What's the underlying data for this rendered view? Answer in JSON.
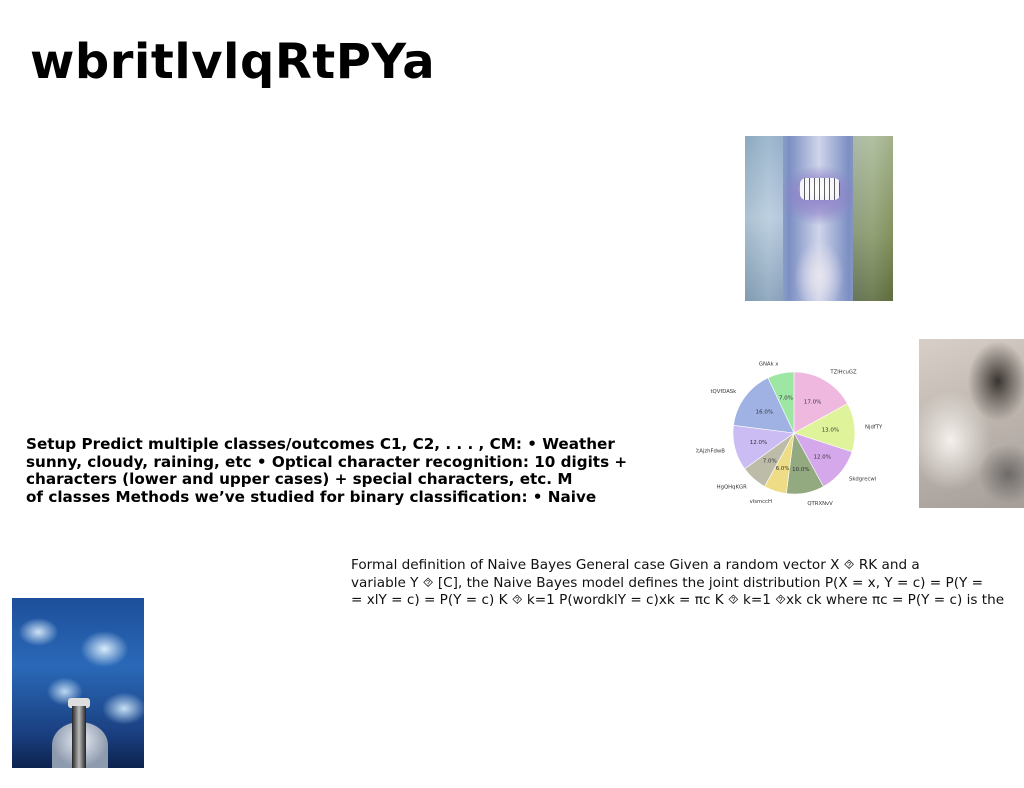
{
  "slide": {
    "title": "wbritlvlqRtPYa",
    "bold_lines": [
      "Setup Predict multiple classes/outcomes C1, C2, . . . , CM: • Weather",
      "sunny, cloudy, raining, etc • Optical character recognition: 10 digits +",
      "characters (lower and upper cases) + special characters, etc. M",
      "of classes Methods we’ve studied for binary classification: • Naive"
    ],
    "formal_lines": [
      "Formal definition of Naive Bayes General case Given a random vector X ⯑ RK and a",
      "variable Y ⯑ [C], the Naive Bayes model defines the joint distribution P(X = x, Y = c) = P(Y =",
      "= xlY = c) = P(Y = c) K ⯑ k=1 P(wordklY = c)xk = πc K ⯑ k=1 ⯑xk ck where πc = P(Y = c) is the"
    ]
  },
  "images": {
    "top_right": "photo-mouth-grills",
    "right": "photo-smoke",
    "bottom_left": "photo-blue-clouds-lighthouse"
  },
  "chart_data": {
    "type": "pie",
    "categories": [
      "TZlHcuGZ",
      "NjdfTY",
      "Skdgrecwl",
      "QTRXNvV",
      "vlsmccH",
      "HgQHqKGR",
      "KtAjzhFdwB",
      "tQVfDASk",
      "GNAk x"
    ],
    "values": [
      17.0,
      13.0,
      12.0,
      10.0,
      6.0,
      7.0,
      12.0,
      16.0,
      7.0
    ],
    "value_labels": [
      "17.0%",
      "13.0%",
      "12.0%",
      "10.0%",
      "6.0%",
      "7.0%",
      "12.0%",
      "16.0%",
      "7.0%"
    ],
    "colors": [
      "#efb8de",
      "#dff39a",
      "#d4a8ea",
      "#93aa80",
      "#eedd86",
      "#bcbca8",
      "#cbbcf4",
      "#a0b2e4",
      "#9ee6a4"
    ],
    "start_angle_deg": 90,
    "direction": "clockwise"
  }
}
